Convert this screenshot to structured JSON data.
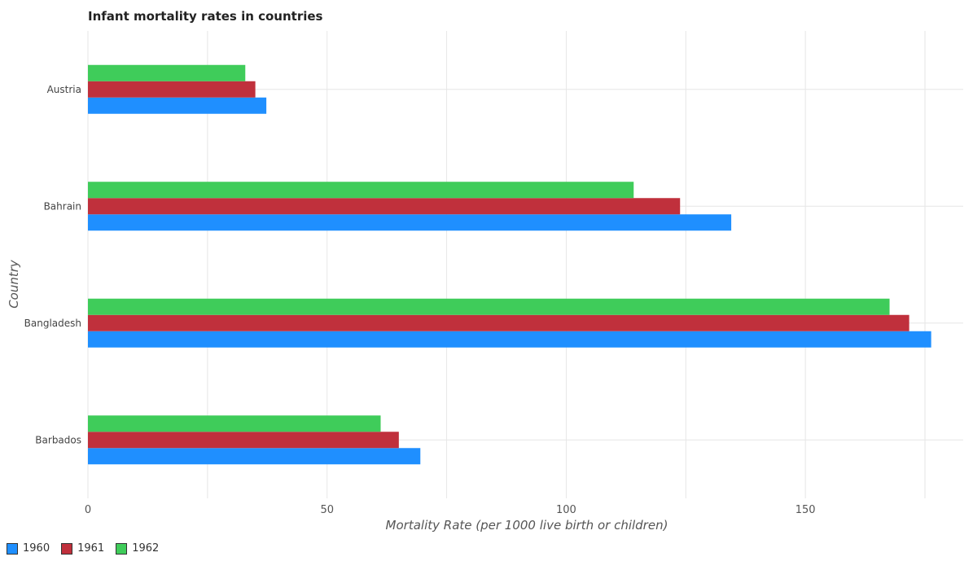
{
  "chart_data": {
    "type": "bar",
    "orientation": "horizontal",
    "title": "Infant mortality rates in countries",
    "xlabel": "Mortality Rate (per 1000 live birth or children)",
    "ylabel": "Country",
    "categories": [
      "Austria",
      "Bahrain",
      "Bangladesh",
      "Barbados"
    ],
    "series": [
      {
        "name": "1960",
        "color": "#1f8fff",
        "values": [
          37.3,
          134.5,
          176.3,
          69.5
        ]
      },
      {
        "name": "1961",
        "color": "#c0303c",
        "values": [
          35.0,
          123.8,
          171.7,
          65.0
        ]
      },
      {
        "name": "1962",
        "color": "#3fcc5a",
        "values": [
          32.9,
          114.1,
          167.6,
          61.2
        ]
      }
    ],
    "xlim": [
      0,
      183
    ],
    "xticks": [
      0,
      50,
      100,
      150
    ],
    "grid": true,
    "legend_position": "bottom-left"
  }
}
